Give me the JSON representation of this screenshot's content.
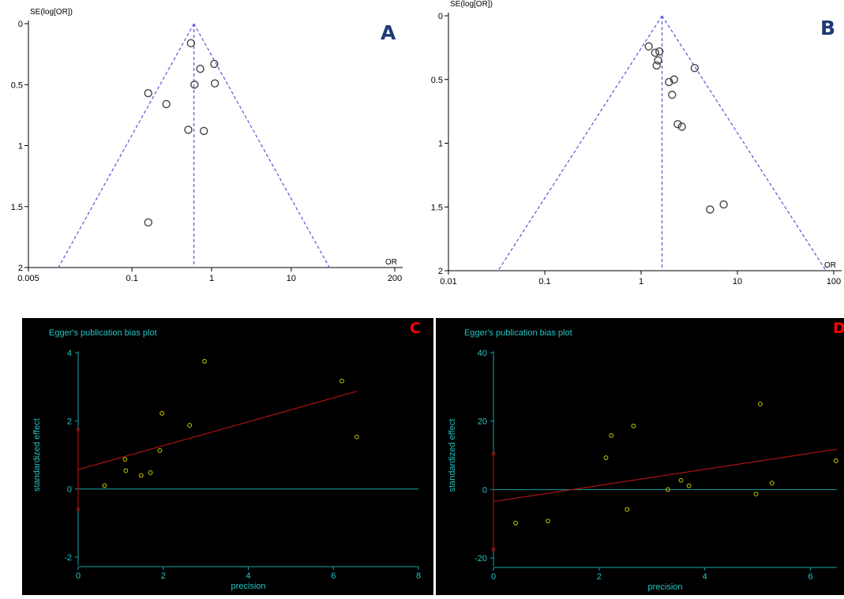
{
  "chart_data": [
    {
      "panel": "A",
      "type": "scatter",
      "ylabel": "SE(log[OR])",
      "xlabel": "OR",
      "xscale": "log",
      "xlim": [
        0.005,
        200
      ],
      "ylim": [
        0,
        2
      ],
      "y_inverted": true,
      "xticks": [
        0.005,
        0.1,
        1,
        10,
        200
      ],
      "xtick_labels": [
        "0.005",
        "0.1",
        "1",
        "10",
        "200"
      ],
      "yticks": [
        0,
        0.5,
        1,
        1.5,
        2
      ],
      "ytick_labels": [
        "0",
        "0.5",
        "1",
        "1.5",
        "2"
      ],
      "pooled_or": 0.6,
      "points": [
        {
          "x": 0.55,
          "y": 0.16
        },
        {
          "x": 1.08,
          "y": 0.33
        },
        {
          "x": 0.72,
          "y": 0.37
        },
        {
          "x": 0.61,
          "y": 0.5
        },
        {
          "x": 1.1,
          "y": 0.49
        },
        {
          "x": 0.16,
          "y": 0.57
        },
        {
          "x": 0.27,
          "y": 0.66
        },
        {
          "x": 0.51,
          "y": 0.87
        },
        {
          "x": 0.8,
          "y": 0.88
        },
        {
          "x": 0.16,
          "y": 1.63
        }
      ],
      "style": {
        "bg": "#ffffff",
        "axis": "#000000",
        "funnel": "#5555dd",
        "marker": "#444444"
      }
    },
    {
      "panel": "B",
      "type": "scatter",
      "ylabel": "SE(log[OR])",
      "xlabel": "OR",
      "xscale": "log",
      "xlim": [
        0.01,
        100
      ],
      "ylim": [
        0,
        2
      ],
      "y_inverted": true,
      "xticks": [
        0.01,
        0.1,
        1,
        10,
        100
      ],
      "xtick_labels": [
        "0.01",
        "0.1",
        "1",
        "10",
        "100"
      ],
      "yticks": [
        0,
        0.5,
        1,
        1.5,
        2
      ],
      "ytick_labels": [
        "0",
        "0.5",
        "1",
        "1.5",
        "2"
      ],
      "pooled_or": 1.65,
      "points": [
        {
          "x": 1.2,
          "y": 0.24
        },
        {
          "x": 1.4,
          "y": 0.29
        },
        {
          "x": 1.55,
          "y": 0.28
        },
        {
          "x": 1.5,
          "y": 0.35
        },
        {
          "x": 1.45,
          "y": 0.39
        },
        {
          "x": 3.6,
          "y": 0.41
        },
        {
          "x": 2.2,
          "y": 0.5
        },
        {
          "x": 1.95,
          "y": 0.52
        },
        {
          "x": 2.1,
          "y": 0.62
        },
        {
          "x": 2.4,
          "y": 0.85
        },
        {
          "x": 2.65,
          "y": 0.87
        },
        {
          "x": 7.2,
          "y": 1.48
        },
        {
          "x": 5.2,
          "y": 1.52
        }
      ],
      "style": {
        "bg": "#ffffff",
        "axis": "#000000",
        "funnel": "#5555dd",
        "marker": "#444444"
      }
    },
    {
      "panel": "C",
      "type": "scatter",
      "title": "Egger's publication bias plot",
      "xlabel": "precision",
      "ylabel": "standardized effect",
      "xlim": [
        0,
        8
      ],
      "ylim": [
        -2,
        4
      ],
      "xticks": [
        0,
        2,
        4,
        6,
        8
      ],
      "xtick_labels": [
        "0",
        "2",
        "4",
        "6",
        "8"
      ],
      "yticks": [
        -2,
        0,
        2,
        4
      ],
      "ytick_labels": [
        "-2",
        "0",
        "2",
        "4"
      ],
      "points": [
        {
          "x": 0.62,
          "y": 0.1
        },
        {
          "x": 1.1,
          "y": 0.87
        },
        {
          "x": 1.12,
          "y": 0.54
        },
        {
          "x": 1.48,
          "y": 0.4
        },
        {
          "x": 1.7,
          "y": 0.48
        },
        {
          "x": 1.92,
          "y": 1.13
        },
        {
          "x": 1.97,
          "y": 2.22
        },
        {
          "x": 2.62,
          "y": 1.87
        },
        {
          "x": 2.97,
          "y": 3.75
        },
        {
          "x": 6.2,
          "y": 3.17
        },
        {
          "x": 6.55,
          "y": 1.53
        }
      ],
      "regression": {
        "x0": 0,
        "y0": 0.57,
        "x1": 6.55,
        "y1": 2.87
      },
      "intercept_ci": [
        -0.6,
        1.75
      ],
      "style": {
        "bg": "#000000",
        "axis": "#1aa3a3",
        "text": "#22c4c4",
        "point": "#c8c800",
        "line": "#aa1111"
      }
    },
    {
      "panel": "D",
      "type": "scatter",
      "title": "Egger's publication bias plot",
      "xlabel": "precision",
      "ylabel": "standardized effect",
      "xlim": [
        0,
        6.5
      ],
      "ylim": [
        -20,
        40
      ],
      "xticks": [
        0,
        2,
        4,
        6
      ],
      "xtick_labels": [
        "0",
        "2",
        "4",
        "6"
      ],
      "yticks": [
        -20,
        0,
        20,
        40
      ],
      "ytick_labels": [
        "-20",
        "0",
        "20",
        "40"
      ],
      "points": [
        {
          "x": 0.42,
          "y": -9.8
        },
        {
          "x": 1.03,
          "y": -9.2
        },
        {
          "x": 2.13,
          "y": 9.3
        },
        {
          "x": 2.23,
          "y": 15.8
        },
        {
          "x": 2.53,
          "y": -5.8
        },
        {
          "x": 2.65,
          "y": 18.6
        },
        {
          "x": 3.3,
          "y": 0.0
        },
        {
          "x": 3.55,
          "y": 2.7
        },
        {
          "x": 3.7,
          "y": 1.1
        },
        {
          "x": 4.97,
          "y": -1.3
        },
        {
          "x": 5.05,
          "y": 25.0
        },
        {
          "x": 5.27,
          "y": 1.9
        },
        {
          "x": 6.48,
          "y": 8.4
        }
      ],
      "regression": {
        "x0": 0,
        "y0": -3.5,
        "x1": 6.5,
        "y1": 11.8
      },
      "intercept_ci": [
        -17.5,
        10.5
      ],
      "style": {
        "bg": "#000000",
        "axis": "#1aa3a3",
        "text": "#22c4c4",
        "point": "#c8c800",
        "line": "#aa1111"
      }
    }
  ],
  "labels": {
    "panel_a": "A",
    "panel_b": "B",
    "panel_c": "C",
    "panel_d": "D",
    "letter_color_ab": "#1f3a73",
    "letter_color_cd": "#ff0000"
  }
}
